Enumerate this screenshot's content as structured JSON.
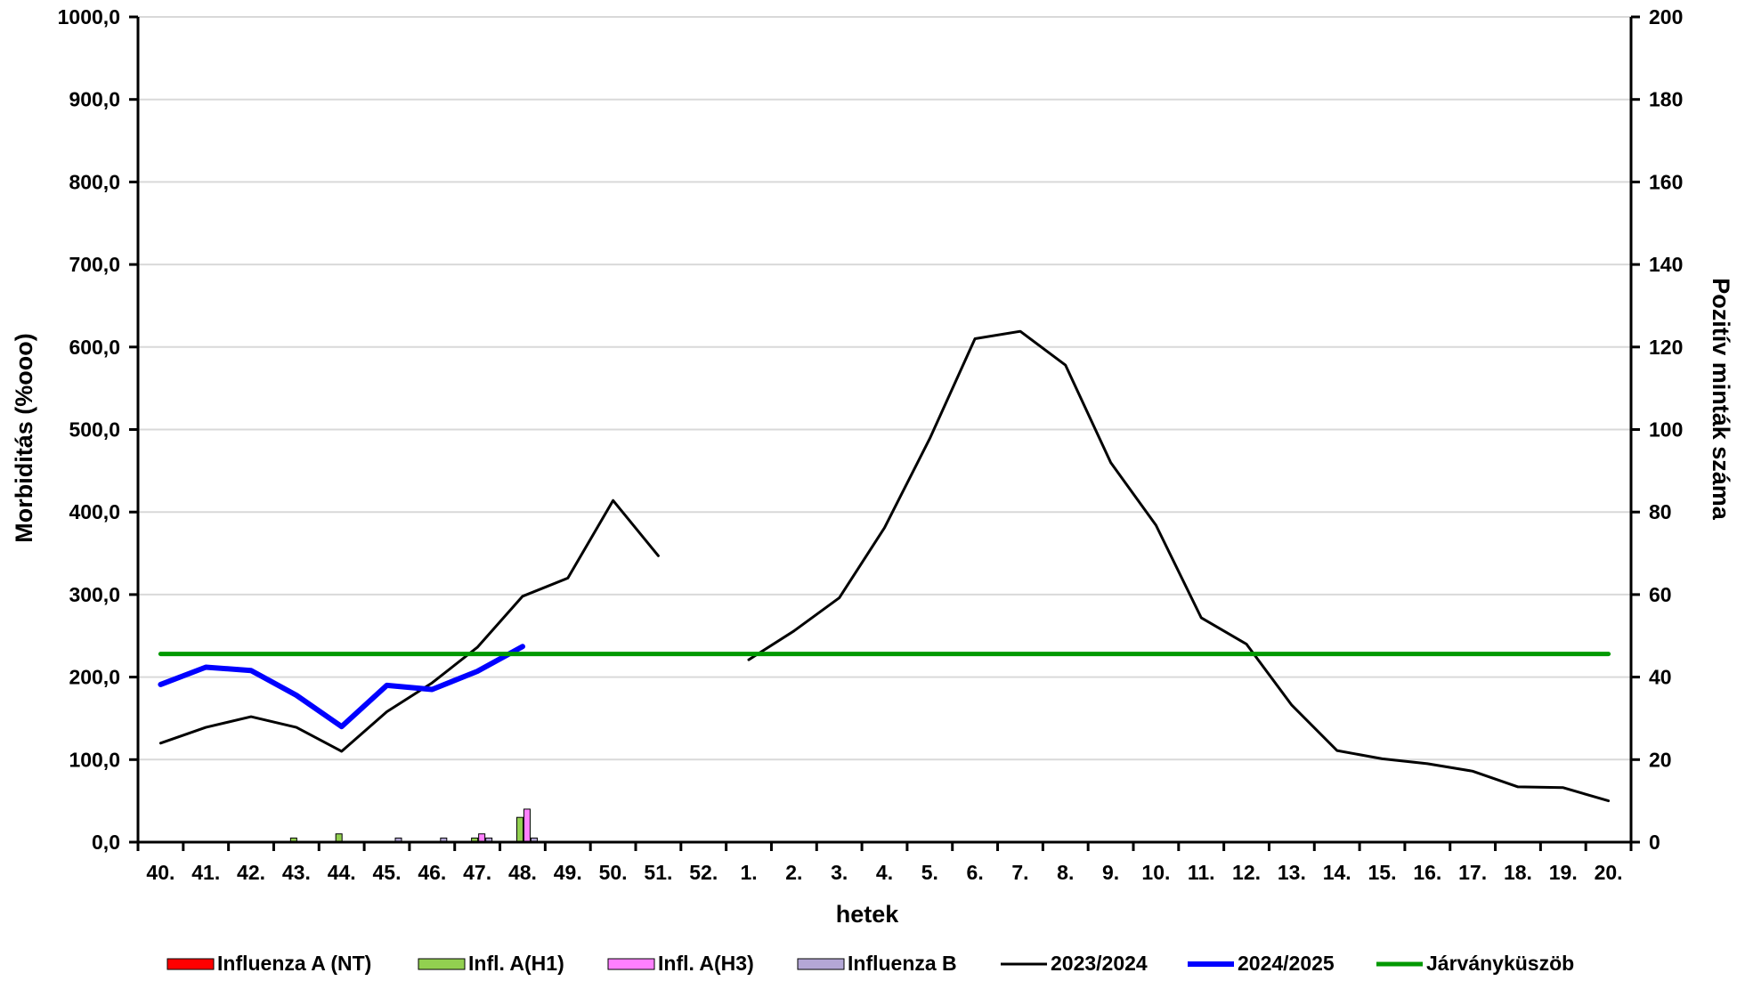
{
  "chart_data": {
    "type": "line",
    "xlabel": "hetek",
    "ylabel": "Morbiditás (%ooo)",
    "y2label": "Pozitív minták száma",
    "ylim": [
      0,
      1000
    ],
    "y2lim": [
      0,
      200
    ],
    "grid": true,
    "legend_position": "bottom",
    "categories": [
      "40.",
      "41.",
      "42.",
      "43.",
      "44.",
      "45.",
      "46.",
      "47.",
      "48.",
      "49.",
      "50.",
      "51.",
      "52.",
      "1.",
      "2.",
      "3.",
      "4.",
      "5.",
      "6.",
      "7.",
      "8.",
      "9.",
      "10.",
      "11.",
      "12.",
      "13.",
      "14.",
      "15.",
      "16.",
      "17.",
      "18.",
      "19.",
      "20."
    ],
    "y_ticks": [
      "0,0",
      "100,0",
      "200,0",
      "300,0",
      "400,0",
      "500,0",
      "600,0",
      "700,0",
      "800,0",
      "900,0",
      "1000,0"
    ],
    "y2_ticks": [
      "0",
      "20",
      "40",
      "60",
      "80",
      "100",
      "120",
      "140",
      "160",
      "180",
      "200"
    ],
    "series": [
      {
        "name": "2023/2024",
        "kind": "line",
        "axis": "left",
        "color": "#000000",
        "values": [
          120,
          139,
          152,
          139,
          110,
          158,
          193,
          236,
          298,
          320,
          414,
          347,
          null,
          221,
          256,
          296,
          381,
          489,
          610,
          619,
          578,
          460,
          384,
          272,
          240,
          166,
          111,
          101,
          95,
          86,
          67,
          66,
          50
        ]
      },
      {
        "name": "2024/2025",
        "kind": "line",
        "axis": "left",
        "color": "#0000ff",
        "values": [
          191,
          212,
          208,
          178,
          140,
          190,
          185,
          207,
          237,
          null,
          null,
          null,
          null,
          null,
          null,
          null,
          null,
          null,
          null,
          null,
          null,
          null,
          null,
          null,
          null,
          null,
          null,
          null,
          null,
          null,
          null,
          null,
          null
        ]
      },
      {
        "name": "Járványküszöb",
        "kind": "line",
        "axis": "left",
        "color": "#009900",
        "values": [
          228,
          228,
          228,
          228,
          228,
          228,
          228,
          228,
          228,
          228,
          228,
          228,
          228,
          228,
          228,
          228,
          228,
          228,
          228,
          228,
          228,
          228,
          228,
          228,
          228,
          228,
          228,
          228,
          228,
          228,
          228,
          228,
          228
        ]
      },
      {
        "name": "Influenza A (NT)",
        "kind": "bar",
        "axis": "right",
        "color": "#ff0000",
        "values": [
          0,
          0,
          0,
          0,
          0,
          0,
          0,
          0,
          0,
          0,
          0,
          0,
          0,
          0,
          0,
          0,
          0,
          0,
          0,
          0,
          0,
          0,
          0,
          0,
          0,
          0,
          0,
          0,
          0,
          0,
          0,
          0,
          0
        ]
      },
      {
        "name": "Infl. A(H1)",
        "kind": "bar",
        "axis": "right",
        "color": "#92d050",
        "values": [
          0,
          0,
          0,
          1,
          2,
          0,
          0,
          1,
          6,
          0,
          0,
          0,
          0,
          0,
          0,
          0,
          0,
          0,
          0,
          0,
          0,
          0,
          0,
          0,
          0,
          0,
          0,
          0,
          0,
          0,
          0,
          0,
          0
        ]
      },
      {
        "name": "Infl. A(H3)",
        "kind": "bar",
        "axis": "right",
        "color": "#ff80ff",
        "values": [
          0,
          0,
          0,
          0,
          0,
          0,
          0,
          2,
          8,
          0,
          0,
          0,
          0,
          0,
          0,
          0,
          0,
          0,
          0,
          0,
          0,
          0,
          0,
          0,
          0,
          0,
          0,
          0,
          0,
          0,
          0,
          0,
          0
        ]
      },
      {
        "name": "Influenza B",
        "kind": "bar",
        "axis": "right",
        "color": "#b4a7d6",
        "values": [
          0,
          0,
          0,
          0,
          0,
          1,
          1,
          1,
          1,
          0,
          0,
          0,
          0,
          0,
          0,
          0,
          0,
          0,
          0,
          0,
          0,
          0,
          0,
          0,
          0,
          0,
          0,
          0,
          0,
          0,
          0,
          0,
          0
        ]
      }
    ]
  }
}
